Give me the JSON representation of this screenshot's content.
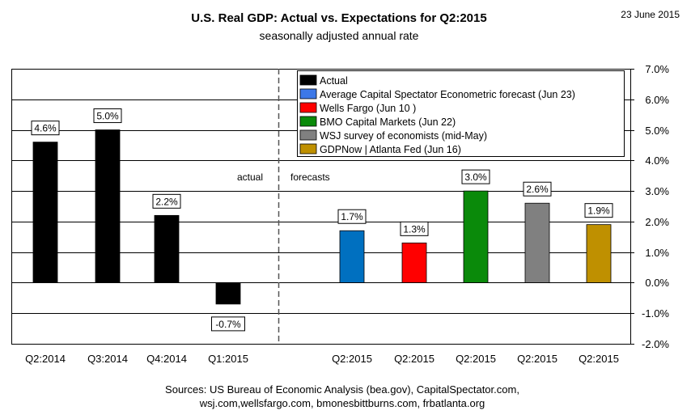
{
  "header": {
    "title": "U.S. Real GDP: Actual vs. Expectations for Q2:2015",
    "subtitle": "seasonally adjusted annual rate",
    "date": "23 June  2015"
  },
  "annotations": {
    "actual": "actual",
    "forecasts": "forecasts"
  },
  "footer": {
    "line1": "Sources: US Bureau of Economic Analysis (bea.gov), CapitalSpectator.com,",
    "line2": "wsj.com,wellsfargo.com,  bmonesbittburns.com,  frbatlanta.org"
  },
  "chart_data": {
    "type": "bar",
    "ylim": [
      -2.0,
      7.0
    ],
    "yticks": [
      -2.0,
      -1.0,
      0.0,
      1.0,
      2.0,
      3.0,
      4.0,
      5.0,
      6.0,
      7.0
    ],
    "ytick_labels": [
      "-2.0%",
      "-1.0%",
      "0.0%",
      "1.0%",
      "2.0%",
      "3.0%",
      "4.0%",
      "5.0%",
      "6.0%",
      "7.0%"
    ],
    "grid": true,
    "legend_position": "top-right",
    "legend": [
      {
        "label": "Actual",
        "color": "#000000"
      },
      {
        "label": "Average Capital Spectator Econometric forecast (Jun 23)",
        "color": "#3C78E8"
      },
      {
        "label": "Wells Fargo (Jun 10 )",
        "color": "#FF0000"
      },
      {
        "label": "BMO Capital Markets (Jun 22)",
        "color": "#0A8A0A"
      },
      {
        "label": "WSJ survey of economists (mid-May)",
        "color": "#808080"
      },
      {
        "label": "GDPNow | Atlanta Fed (Jun 16)",
        "color": "#BF9000"
      }
    ],
    "bars": [
      {
        "category": "Q2:2014",
        "value": 4.6,
        "label": "4.6%",
        "color": "#000000"
      },
      {
        "category": "Q3:2014",
        "value": 5.0,
        "label": "5.0%",
        "color": "#000000"
      },
      {
        "category": "Q4:2014",
        "value": 2.2,
        "label": "2.2%",
        "color": "#000000"
      },
      {
        "category": "Q1:2015",
        "value": -0.7,
        "label": "-0.7%",
        "color": "#000000"
      },
      {
        "category": "Q2:2015",
        "value": 1.7,
        "label": "1.7%",
        "color": "#0070C0"
      },
      {
        "category": "Q2:2015",
        "value": 1.3,
        "label": "1.3%",
        "color": "#FF0000"
      },
      {
        "category": "Q2:2015",
        "value": 3.0,
        "label": "3.0%",
        "color": "#0A8A0A"
      },
      {
        "category": "Q2:2015",
        "value": 2.6,
        "label": "2.6%",
        "color": "#808080"
      },
      {
        "category": "Q2:2015",
        "value": 1.9,
        "label": "1.9%",
        "color": "#BF9000"
      }
    ]
  }
}
